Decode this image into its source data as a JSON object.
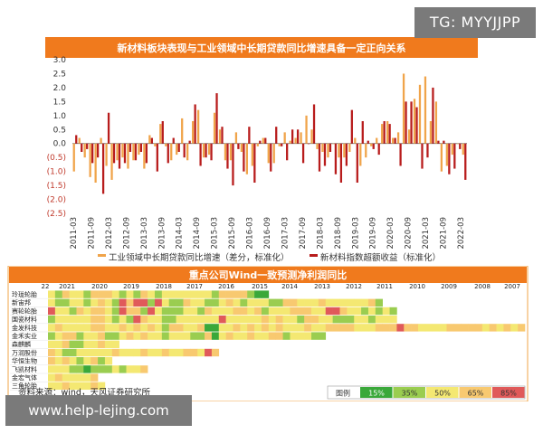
{
  "watermarks": {
    "top": "TG: MYYJJPP",
    "bottom": "www.help-lejing.com"
  },
  "colors": {
    "header_bg": "#f07a1d",
    "orange_series": "#f0a44a",
    "red_series": "#b81c1c",
    "axis_text": "#333333",
    "scale_colors": [
      "#3aa83a",
      "#9acd50",
      "#f4e872",
      "#f8c970",
      "#e05a5a"
    ]
  },
  "chart_data": [
    {
      "type": "bar",
      "title": "新材料板块表现与工业领域中长期贷款同比增速具备一定正向关系",
      "y_tick_labels": [
        "3.0",
        "2.5",
        "2.0",
        "1.5",
        "1.0",
        "0.5",
        "0.0",
        "(0.5)",
        "(1.0)",
        "(1.5)",
        "(2.0)",
        "(2.5)"
      ],
      "ylim": [
        -2.5,
        3.0
      ],
      "x_tick_labels": [
        "2011-03",
        "2011-09",
        "2012-03",
        "2012-09",
        "2013-03",
        "2013-09",
        "2014-03",
        "2014-09",
        "2015-03",
        "2015-09",
        "2016-03",
        "2016-09",
        "2017-03",
        "2017-09",
        "2018-03",
        "2018-09",
        "2019-03",
        "2019-09",
        "2020-03",
        "2020-09",
        "2021-03",
        "2021-09",
        "2022-03"
      ],
      "series": [
        {
          "name": "工业领域中长期贷款同比增速（差分，标准化）",
          "color": "#f0a44a",
          "values": [
            -1.0,
            0.2,
            -0.5,
            -1.2,
            -1.4,
            0.2,
            -0.8,
            -1.3,
            -0.6,
            -0.5,
            -0.9,
            -0.6,
            -0.4,
            -0.9,
            0.3,
            -0.1,
            0.7,
            -0.1,
            -0.6,
            -0.4,
            0.9,
            -0.6,
            0.8,
            1.2,
            -0.5,
            -0.4,
            1.1,
            0.5,
            -0.6,
            -0.6,
            0.4,
            -0.3,
            -1.1,
            -0.8,
            -0.1,
            0.2,
            -0.7,
            -0.7,
            -0.1,
            0.4,
            0.1,
            0.2,
            0.4,
            1.0,
            0.5,
            -0.2,
            -0.3,
            -0.5,
            0.0,
            -0.5,
            -0.5,
            -0.3,
            0.2,
            -0.8,
            -0.5,
            -0.1,
            0.2,
            0.7,
            0.8,
            0.2,
            0.4,
            2.5,
            0.5,
            1.6,
            2.1,
            2.4,
            0.8,
            1.5,
            -1.0,
            -0.8,
            -0.4,
            0.0,
            -0.4
          ]
        },
        {
          "name": "新材料指数超额收益（标准化）",
          "color": "#b81c1c",
          "values": [
            0.3,
            -0.3,
            -0.2,
            -0.7,
            -0.5,
            -1.8,
            1.1,
            -0.7,
            -0.9,
            -0.7,
            -0.3,
            -0.6,
            -0.3,
            -0.7,
            0.2,
            -1.0,
            0.8,
            -0.7,
            0.2,
            -0.3,
            -0.5,
            0.1,
            1.4,
            -0.8,
            -0.5,
            -0.6,
            1.8,
            0.6,
            -0.9,
            -1.5,
            -0.2,
            -1.0,
            0.6,
            -1.4,
            0.1,
            0.2,
            -1.0,
            0.6,
            -0.1,
            -0.6,
            0.5,
            0.5,
            -0.7,
            0.0,
            1.4,
            -1.0,
            -0.8,
            -0.3,
            -1.1,
            -1.4,
            -0.8,
            1.2,
            -1.4,
            0.8,
            0.1,
            -0.2,
            -0.4,
            0.8,
            0.7,
            0.2,
            -0.8,
            1.5,
            1.5,
            1.3,
            -0.9,
            -0.5,
            2.0,
            0.1,
            0.1,
            -1.1,
            -0.9,
            -0.2,
            -1.3
          ]
        }
      ]
    },
    {
      "type": "heatmap",
      "title": "重点公司Wind一致预测净利润同比",
      "column_labels": [
        "22",
        "2021",
        "2020",
        "2019",
        "2018",
        "2017",
        "2016",
        "2015",
        "2014",
        "2013",
        "2012",
        "2011",
        "2010",
        "2009",
        "2008",
        "2007"
      ],
      "row_labels": [
        "玲珑轮胎",
        "新宙邦",
        "赛轮轮胎",
        "国瓷材料",
        "金发科技",
        "金禾实业",
        "森麒麟",
        "万润股份",
        "华恒生物",
        "飞凯材料",
        "金宏气体",
        "三角轮胎"
      ],
      "legend_label": "图例",
      "scale": [
        {
          "label": "15%",
          "color": "#3aa83a"
        },
        {
          "label": "35%",
          "color": "#9acd50"
        },
        {
          "label": "50%",
          "color": "#f4e872"
        },
        {
          "label": "65%",
          "color": "#f8c970"
        },
        {
          "label": "85%",
          "color": "#e05a5a"
        }
      ],
      "cells": [
        "3243324443232432333333324444211",
        "32233234325455253224332234323332244333433333342",
        "5332434432544253222332433344342333444335543323232",
        "2333334432325433223333335333334343324433222332333",
        "3433334433434343244334113343434343334334444333444544333344444343434",
        "234423342234343323332241343343344233322",
        "3342233433",
        "432233333433343343344354",
        "434323423",
        "33322122232334",
        "3433334",
        "33433343"
      ],
      "source": "资料来源：wind，天风证券研究所"
    }
  ]
}
